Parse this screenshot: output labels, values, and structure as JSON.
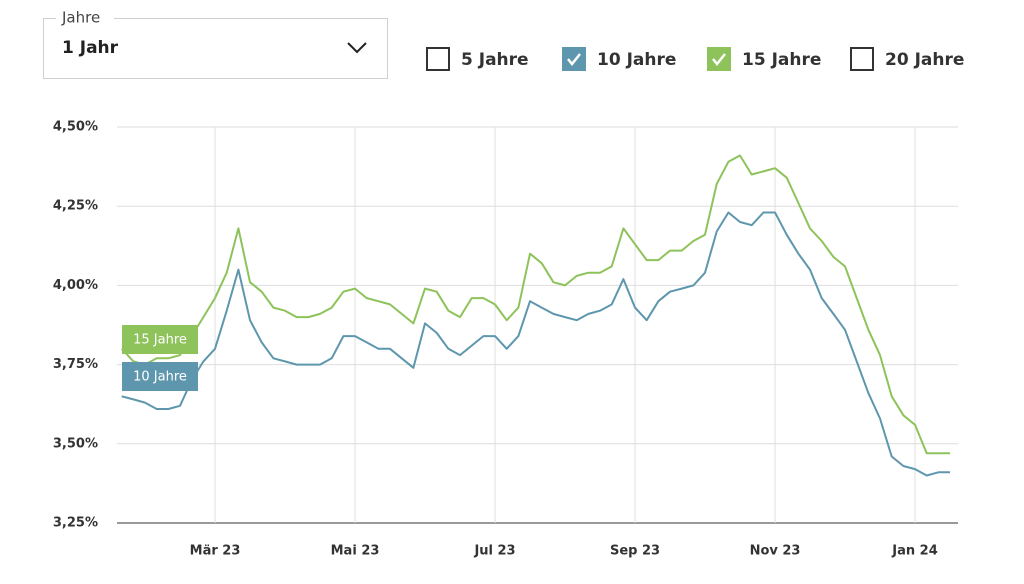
{
  "controls": {
    "dropdown": {
      "label": "Jahre",
      "value": "1 Jahr"
    },
    "checkboxes": [
      {
        "label": "5 Jahre",
        "checked": false,
        "color": "#333333"
      },
      {
        "label": "10 Jahre",
        "checked": true,
        "color": "#5e97ad"
      },
      {
        "label": "15 Jahre",
        "checked": true,
        "color": "#8dc35a"
      },
      {
        "label": "20 Jahre",
        "checked": false,
        "color": "#333333"
      }
    ]
  },
  "chart_data": {
    "type": "line",
    "categories": [
      null,
      null,
      null,
      null,
      null,
      null,
      null,
      null,
      "Mär 23",
      null,
      null,
      null,
      null,
      null,
      null,
      null,
      null,
      null,
      null,
      null,
      "Mai 23",
      null,
      null,
      null,
      null,
      null,
      null,
      null,
      null,
      null,
      null,
      null,
      "Jul 23",
      null,
      null,
      null,
      null,
      null,
      null,
      null,
      null,
      null,
      null,
      null,
      "Sep 23",
      null,
      null,
      null,
      null,
      null,
      null,
      null,
      null,
      null,
      null,
      null,
      "Nov 23",
      null,
      null,
      null,
      null,
      null,
      null,
      null,
      null,
      null,
      null,
      null,
      "Jan 24",
      null,
      null,
      null
    ],
    "series": [
      {
        "name": "15 Jahre",
        "color": "#8dc35a",
        "values": [
          3.8,
          3.76,
          3.75,
          3.77,
          3.77,
          3.78,
          3.84,
          3.9,
          3.96,
          4.04,
          4.18,
          4.01,
          3.98,
          3.93,
          3.92,
          3.9,
          3.9,
          3.91,
          3.93,
          3.98,
          3.99,
          3.96,
          3.95,
          3.94,
          3.91,
          3.88,
          3.99,
          3.98,
          3.92,
          3.9,
          3.96,
          3.96,
          3.94,
          3.89,
          3.93,
          4.1,
          4.07,
          4.01,
          4.0,
          4.03,
          4.04,
          4.04,
          4.06,
          4.18,
          4.13,
          4.08,
          4.08,
          4.11,
          4.11,
          4.14,
          4.16,
          4.32,
          4.39,
          4.41,
          4.35,
          4.36,
          4.37,
          4.34,
          4.26,
          4.18,
          4.14,
          4.09,
          4.06,
          3.96,
          3.86,
          3.78,
          3.65,
          3.59,
          3.56,
          3.47,
          3.47,
          3.47
        ]
      },
      {
        "name": "10 Jahre",
        "color": "#5e97ad",
        "values": [
          3.65,
          3.64,
          3.63,
          3.61,
          3.61,
          3.62,
          3.7,
          3.76,
          3.8,
          3.92,
          4.05,
          3.89,
          3.82,
          3.77,
          3.76,
          3.75,
          3.75,
          3.75,
          3.77,
          3.84,
          3.84,
          3.82,
          3.8,
          3.8,
          3.77,
          3.74,
          3.88,
          3.85,
          3.8,
          3.78,
          3.81,
          3.84,
          3.84,
          3.8,
          3.84,
          3.95,
          3.93,
          3.91,
          3.9,
          3.89,
          3.91,
          3.92,
          3.94,
          4.02,
          3.93,
          3.89,
          3.95,
          3.98,
          3.99,
          4.0,
          4.04,
          4.17,
          4.23,
          4.2,
          4.19,
          4.23,
          4.23,
          4.16,
          4.1,
          4.05,
          3.96,
          3.91,
          3.86,
          3.76,
          3.66,
          3.58,
          3.46,
          3.43,
          3.42,
          3.4,
          3.41,
          3.41
        ]
      }
    ],
    "ylim": [
      3.25,
      4.5
    ],
    "yticks": [
      {
        "value": 3.25,
        "label": "3,25%"
      },
      {
        "value": 3.5,
        "label": "3,50%"
      },
      {
        "value": 3.75,
        "label": "3,75%"
      },
      {
        "value": 4.0,
        "label": "4,00%"
      },
      {
        "value": 4.25,
        "label": "4,25%"
      },
      {
        "value": 4.5,
        "label": "4,50%"
      }
    ],
    "grid": true
  }
}
